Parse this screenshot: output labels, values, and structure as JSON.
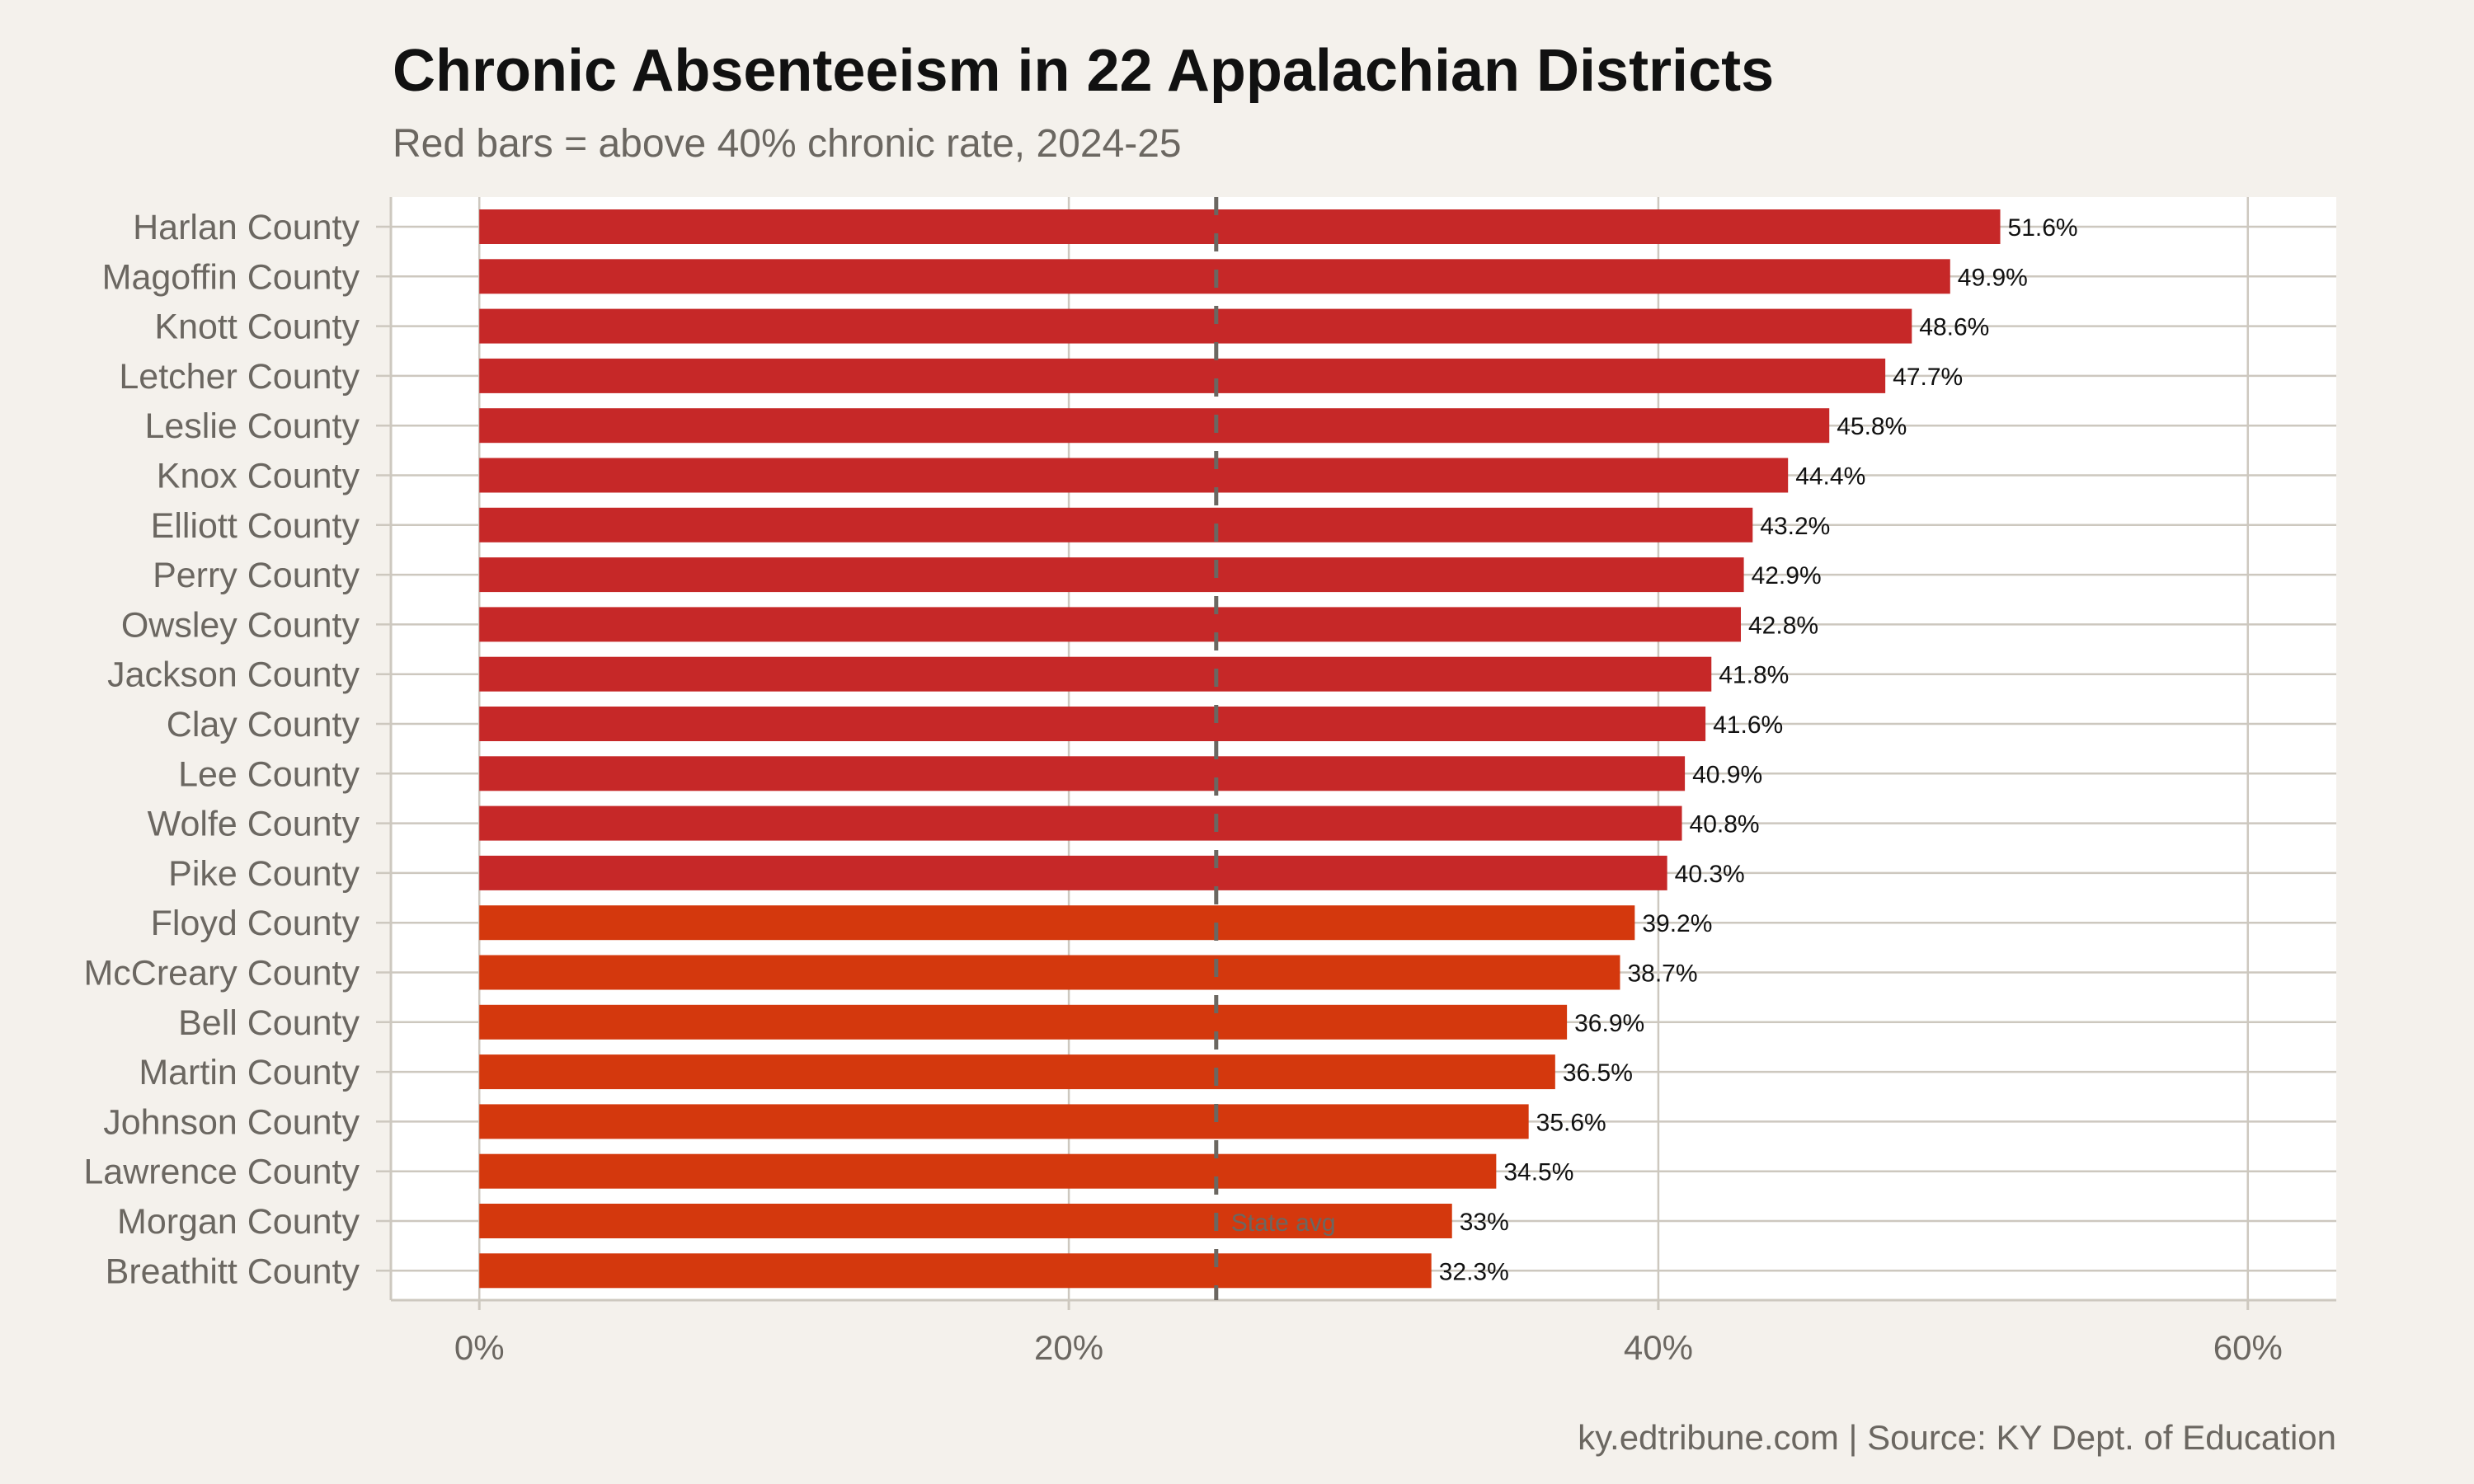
{
  "chart_data": {
    "type": "bar",
    "orientation": "horizontal",
    "title": "Chronic Absenteeism in 22 Appalachian Districts",
    "subtitle": "Red bars = above 40% chronic rate, 2024-25",
    "caption": "ky.edtribune.com | Source: KY Dept. of Education",
    "categories": [
      "Harlan County",
      "Magoffin County",
      "Knott County",
      "Letcher County",
      "Leslie County",
      "Knox County",
      "Elliott County",
      "Perry County",
      "Owsley County",
      "Jackson County",
      "Clay County",
      "Lee County",
      "Wolfe County",
      "Pike County",
      "Floyd County",
      "McCreary County",
      "Bell County",
      "Martin County",
      "Johnson County",
      "Lawrence County",
      "Morgan County",
      "Breathitt County"
    ],
    "values": [
      51.6,
      49.9,
      48.6,
      47.7,
      45.8,
      44.4,
      43.2,
      42.9,
      42.8,
      41.8,
      41.6,
      40.9,
      40.8,
      40.3,
      39.2,
      38.7,
      36.9,
      36.5,
      35.6,
      34.5,
      33,
      32.3
    ],
    "value_labels": [
      "51.6%",
      "49.9%",
      "48.6%",
      "47.7%",
      "45.8%",
      "44.4%",
      "43.2%",
      "42.9%",
      "42.8%",
      "41.8%",
      "41.6%",
      "40.9%",
      "40.8%",
      "40.3%",
      "39.2%",
      "38.7%",
      "36.9%",
      "36.5%",
      "35.6%",
      "34.5%",
      "33%",
      "32.3%"
    ],
    "threshold": 40,
    "colors": {
      "above_threshold": "#c62828",
      "below_threshold": "#d4380d",
      "reference_line": "#6b6761",
      "panel": "#ffffff",
      "background": "#f4f1ec",
      "grid": "#cdc8bf"
    },
    "xlim": [
      -3,
      63
    ],
    "x_ticks": [
      0,
      20,
      40,
      60
    ],
    "x_tick_labels": [
      "0%",
      "20%",
      "40%",
      "60%"
    ],
    "reference_line": {
      "value": 25,
      "label": "State avg",
      "style": "dashed"
    },
    "xlabel": "",
    "ylabel": "",
    "grid": true,
    "legend": "none"
  }
}
